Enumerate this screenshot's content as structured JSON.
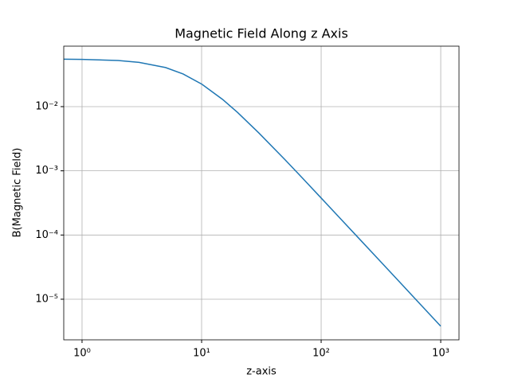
{
  "chart_data": {
    "type": "line",
    "title": "Magnetic Field Along z Axis",
    "xlabel": "z-axis",
    "ylabel": "B(Magnetic Field)",
    "x": [
      0.7,
      1,
      2,
      3,
      5,
      7,
      10,
      15,
      20,
      30,
      50,
      70,
      100,
      150,
      200,
      300,
      500,
      700,
      1000
    ],
    "series": [
      {
        "color": "#1f77b4",
        "values": [
          0.0549,
          0.0545,
          0.0523,
          0.0489,
          0.0406,
          0.0323,
          0.0225,
          0.01294,
          0.00811,
          0.00392,
          0.00148,
          0.000765,
          0.000377,
          0.000168,
          9.48e-05,
          4.22e-05,
          1.52e-05,
          7.75e-06,
          3.8e-06
        ]
      }
    ],
    "xlim": [
      0.703,
      1422
    ],
    "ylim": [
      2.33e-06,
      0.0875
    ],
    "xticks": [
      {
        "value": 1,
        "label": "10⁰"
      },
      {
        "value": 10,
        "label": "10¹"
      },
      {
        "value": 100,
        "label": "10²"
      },
      {
        "value": 1000,
        "label": "10³"
      }
    ],
    "yticks": [
      {
        "value": 1e-05,
        "label": "10⁻⁵"
      },
      {
        "value": 0.0001,
        "label": "10⁻⁴"
      },
      {
        "value": 0.001,
        "label": "10⁻³"
      },
      {
        "value": 0.01,
        "label": "10⁻²"
      }
    ],
    "xscale": "log",
    "yscale": "log",
    "grid": true
  }
}
